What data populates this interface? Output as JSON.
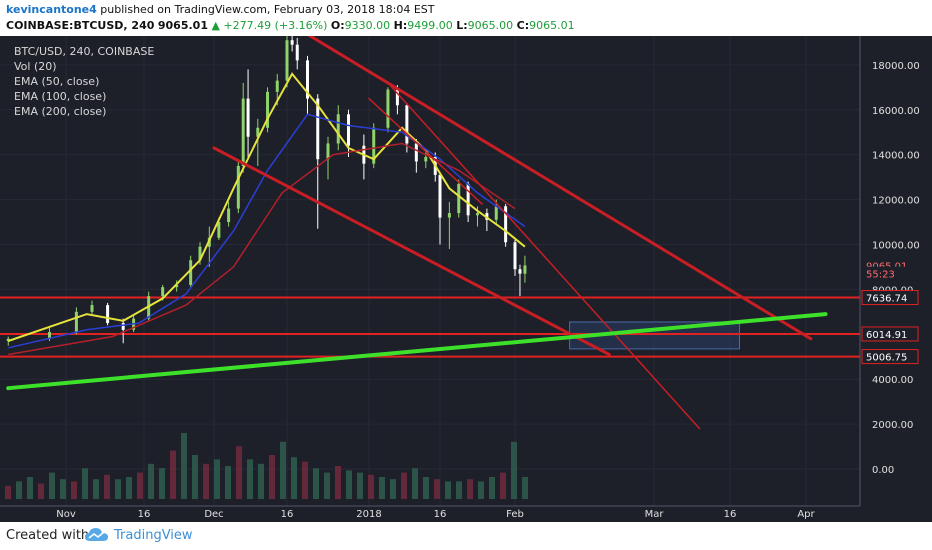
{
  "header": {
    "author": "kevincantone4",
    "published_text": "published on TradingView.com, February 03, 2018 18:04 EST",
    "symbol": "COINBASE:BTCUSD, 240",
    "last": "9065.01",
    "change": "▲ +277.49 (+3.16%)",
    "o_label": "O:",
    "o_value": "9330.00",
    "h_label": "H:",
    "h_value": "9499.00",
    "l_label": "L:",
    "l_value": "9065.00",
    "c_label": "C:",
    "c_value": "9065.01"
  },
  "legend": {
    "title": "BTC/USD, 240, COINBASE",
    "vol": "Vol (20)",
    "ema50": "EMA (50, close)",
    "ema100": "EMA (100, close)",
    "ema200": "EMA (200, close)"
  },
  "footer": {
    "created": "Created with",
    "brand": "TradingView"
  },
  "colors": {
    "background": "#1d1f29",
    "ema50": "#e6e33b",
    "ema100": "#2b3fd6",
    "ema200": "#b3202a",
    "trendline": "#c81e24",
    "support_line": "#e02222",
    "green_line": "#3de12a",
    "candle_up": "#8fd36a",
    "candle_down": "#ffffff",
    "target_box": "#2a3d66"
  },
  "chart_data": {
    "type": "candlestick",
    "y_axis": {
      "ticks": [
        0,
        2000,
        4000,
        6000,
        8000,
        10000,
        12000,
        14000,
        16000,
        18000
      ],
      "tick_labels": [
        "0.00",
        "2000.00",
        "4000.00",
        "",
        "8000.00",
        "10000.00",
        "12000.00",
        "14000.00",
        "16000.00",
        "18000.00"
      ]
    },
    "x_axis": {
      "ticks": [
        "2017-11-01",
        "2017-11-16",
        "2017-12-01",
        "2017-12-16",
        "2018-01-01",
        "2018-01-16",
        "2018-02-01",
        "2018-03-01",
        "2018-03-16",
        "2018-04-01"
      ],
      "tick_labels": [
        "Nov",
        "16",
        "Dec",
        "16",
        "2018",
        "16",
        "Feb",
        "Mar",
        "16",
        "Apr"
      ]
    },
    "price_labels": [
      {
        "value": 9065.01,
        "text": "9065.01"
      },
      {
        "value": 8700,
        "text": "55:23"
      },
      {
        "value": 7636.74,
        "text": "7636.74"
      },
      {
        "value": 6014.91,
        "text": "6014.91"
      },
      {
        "value": 5006.75,
        "text": "5006.75"
      }
    ],
    "horizontal_lines": [
      7636.74,
      6014.91,
      5006.75
    ],
    "trendlines": [
      {
        "name": "upper-channel",
        "from": [
          "2017-12-19",
          19500
        ],
        "to": [
          "2018-04-02",
          5800
        ]
      },
      {
        "name": "lower-channel",
        "from": [
          "2017-12-01",
          14300
        ],
        "to": [
          "2018-02-20",
          5100
        ]
      },
      {
        "name": "steep-descending",
        "from": [
          "2018-01-05",
          17200
        ],
        "to": [
          "2018-03-10",
          1800
        ]
      },
      {
        "name": "inner-descending",
        "from": [
          "2018-01-25",
          11800
        ],
        "to": [
          "2018-01-01",
          16500
        ]
      },
      {
        "name": "long-term-support",
        "from": [
          "2017-10-25",
          3600
        ],
        "to": [
          "2018-04-05",
          6900
        ]
      }
    ],
    "target_box": {
      "x_from": "2018-02-12",
      "x_to": "2018-03-18",
      "y_from": 5350,
      "y_to": 6550
    },
    "series": [
      {
        "name": "EMA (50, close)",
        "color": "#e6e33b",
        "points": [
          [
            "2017-10-25",
            5700
          ],
          [
            "2017-11-05",
            6900
          ],
          [
            "2017-11-12",
            6600
          ],
          [
            "2017-11-20",
            7600
          ],
          [
            "2017-11-28",
            9300
          ],
          [
            "2017-12-05",
            12500
          ],
          [
            "2017-12-12",
            15600
          ],
          [
            "2017-12-17",
            17600
          ],
          [
            "2017-12-22",
            16200
          ],
          [
            "2017-12-28",
            14300
          ],
          [
            "2018-01-02",
            13800
          ],
          [
            "2018-01-08",
            15200
          ],
          [
            "2018-01-13",
            14200
          ],
          [
            "2018-01-18",
            12500
          ],
          [
            "2018-01-24",
            11500
          ],
          [
            "2018-01-30",
            10600
          ],
          [
            "2018-02-03",
            9900
          ]
        ]
      },
      {
        "name": "EMA (100, close)",
        "color": "#2b3fd6",
        "points": [
          [
            "2017-10-25",
            5400
          ],
          [
            "2017-11-05",
            6200
          ],
          [
            "2017-11-15",
            6500
          ],
          [
            "2017-11-25",
            7800
          ],
          [
            "2017-12-05",
            10600
          ],
          [
            "2017-12-12",
            13300
          ],
          [
            "2017-12-20",
            15800
          ],
          [
            "2017-12-28",
            15300
          ],
          [
            "2018-01-08",
            15000
          ],
          [
            "2018-01-16",
            13800
          ],
          [
            "2018-01-24",
            12300
          ],
          [
            "2018-02-03",
            10800
          ]
        ]
      },
      {
        "name": "EMA (200, close)",
        "color": "#b3202a",
        "points": [
          [
            "2017-10-25",
            5100
          ],
          [
            "2017-11-10",
            5900
          ],
          [
            "2017-11-25",
            7300
          ],
          [
            "2017-12-05",
            9000
          ],
          [
            "2017-12-15",
            12300
          ],
          [
            "2017-12-25",
            14000
          ],
          [
            "2018-01-08",
            14500
          ],
          [
            "2018-01-20",
            13300
          ],
          [
            "2018-02-01",
            11600
          ]
        ]
      }
    ],
    "candles": [
      [
        "2017-10-25",
        5700,
        5900,
        5500,
        5800
      ],
      [
        "2017-10-30",
        5800,
        6300,
        5700,
        6100
      ],
      [
        "2017-11-03",
        6100,
        7200,
        6000,
        7000
      ],
      [
        "2017-11-06",
        7000,
        7500,
        6900,
        7300
      ],
      [
        "2017-11-09",
        7300,
        7400,
        6400,
        6500
      ],
      [
        "2017-11-12",
        6500,
        6700,
        5600,
        6200
      ],
      [
        "2017-11-14",
        6200,
        6900,
        6100,
        6700
      ],
      [
        "2017-11-17",
        6700,
        7900,
        6600,
        7700
      ],
      [
        "2017-11-20",
        7700,
        8200,
        7500,
        8100
      ],
      [
        "2017-11-23",
        8100,
        8400,
        7900,
        8200
      ],
      [
        "2017-11-26",
        8200,
        9500,
        8100,
        9300
      ],
      [
        "2017-11-28",
        9300,
        10100,
        9100,
        9900
      ],
      [
        "2017-11-30",
        9900,
        10800,
        9000,
        10300
      ],
      [
        "2017-12-02",
        10300,
        11200,
        10200,
        11000
      ],
      [
        "2017-12-04",
        11000,
        11900,
        10800,
        11600
      ],
      [
        "2017-12-06",
        11600,
        13800,
        11400,
        13500
      ],
      [
        "2017-12-07",
        13500,
        17200,
        13200,
        16500
      ],
      [
        "2017-12-08",
        16500,
        17800,
        13900,
        14800
      ],
      [
        "2017-12-10",
        14800,
        15600,
        13500,
        15200
      ],
      [
        "2017-12-12",
        15200,
        17000,
        15000,
        16800
      ],
      [
        "2017-12-14",
        16800,
        17600,
        16200,
        17300
      ],
      [
        "2017-12-16",
        17300,
        19300,
        17000,
        19100
      ],
      [
        "2017-12-17",
        19100,
        19700,
        18600,
        18900
      ],
      [
        "2017-12-18",
        18900,
        19200,
        17800,
        18200
      ],
      [
        "2017-12-20",
        18200,
        18400,
        15800,
        16500
      ],
      [
        "2017-12-22",
        16500,
        16700,
        10700,
        13800
      ],
      [
        "2017-12-24",
        13800,
        14800,
        12900,
        14500
      ],
      [
        "2017-12-26",
        14500,
        16200,
        14200,
        15800
      ],
      [
        "2017-12-28",
        15800,
        16000,
        13900,
        14400
      ],
      [
        "2017-12-31",
        14400,
        14900,
        12900,
        13600
      ],
      [
        "2018-01-02",
        13600,
        15400,
        13400,
        15200
      ],
      [
        "2018-01-05",
        15200,
        17000,
        15000,
        16900
      ],
      [
        "2018-01-07",
        16900,
        17100,
        15800,
        16200
      ],
      [
        "2018-01-09",
        16200,
        16300,
        14100,
        14500
      ],
      [
        "2018-01-11",
        14500,
        14700,
        13200,
        13700
      ],
      [
        "2018-01-13",
        13700,
        14200,
        13400,
        13900
      ],
      [
        "2018-01-15",
        13900,
        14100,
        12800,
        13100
      ],
      [
        "2018-01-16",
        13100,
        13200,
        10000,
        11200
      ],
      [
        "2018-01-18",
        11200,
        11900,
        9800,
        11400
      ],
      [
        "2018-01-20",
        11400,
        12900,
        11200,
        12700
      ],
      [
        "2018-01-22",
        12700,
        12800,
        11000,
        11300
      ],
      [
        "2018-01-24",
        11300,
        11700,
        10800,
        11400
      ],
      [
        "2018-01-26",
        11400,
        11600,
        10600,
        11100
      ],
      [
        "2018-01-28",
        11100,
        12000,
        10900,
        11700
      ],
      [
        "2018-01-30",
        11700,
        11800,
        9900,
        10100
      ],
      [
        "2018-02-01",
        10100,
        10200,
        8600,
        8900
      ],
      [
        "2018-02-02",
        8900,
        9100,
        7700,
        8700
      ],
      [
        "2018-02-03",
        8700,
        9500,
        8300,
        9065.01
      ]
    ],
    "volume": [
      6,
      8,
      10,
      7,
      12,
      9,
      8,
      14,
      9,
      11,
      9,
      10,
      12,
      16,
      14,
      22,
      30,
      20,
      16,
      18,
      15,
      24,
      18,
      16,
      20,
      26,
      19,
      17,
      14,
      12,
      15,
      13,
      12,
      11,
      10,
      9,
      12,
      14,
      10,
      9,
      8,
      8,
      9,
      8,
      10,
      12,
      26,
      10
    ]
  }
}
